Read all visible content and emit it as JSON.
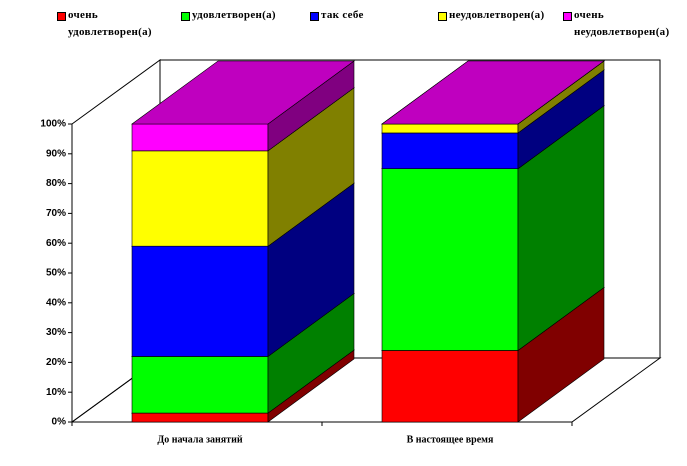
{
  "chart_data": {
    "type": "bar3d_stacked",
    "categories": [
      "До начала занятий",
      "В настоящее время"
    ],
    "series": [
      {
        "name": "очень удовлетворен(а)",
        "color": "#ff0000",
        "values": [
          3,
          24
        ]
      },
      {
        "name": "удовлетворен(а)",
        "color": "#00ff00",
        "values": [
          19,
          61
        ]
      },
      {
        "name": "так себе",
        "color": "#0000ff",
        "values": [
          37,
          12
        ]
      },
      {
        "name": "неудовлетворен(а)",
        "color": "#ffff00",
        "values": [
          32,
          3
        ]
      },
      {
        "name": "очень неудовлетворен(а)",
        "color": "#ff00ff",
        "values": [
          9,
          0
        ]
      }
    ],
    "ylim": [
      0,
      100
    ],
    "yticks": [
      {
        "value": 0,
        "label": "0%"
      },
      {
        "value": 10,
        "label": "10%"
      },
      {
        "value": 20,
        "label": "20%"
      },
      {
        "value": 30,
        "label": "30%"
      },
      {
        "value": 40,
        "label": "40%"
      },
      {
        "value": 50,
        "label": "50%"
      },
      {
        "value": 60,
        "label": "60%"
      },
      {
        "value": 70,
        "label": "70%"
      },
      {
        "value": 80,
        "label": "80%"
      },
      {
        "value": 90,
        "label": "90%"
      },
      {
        "value": 100,
        "label": "100%"
      }
    ]
  }
}
